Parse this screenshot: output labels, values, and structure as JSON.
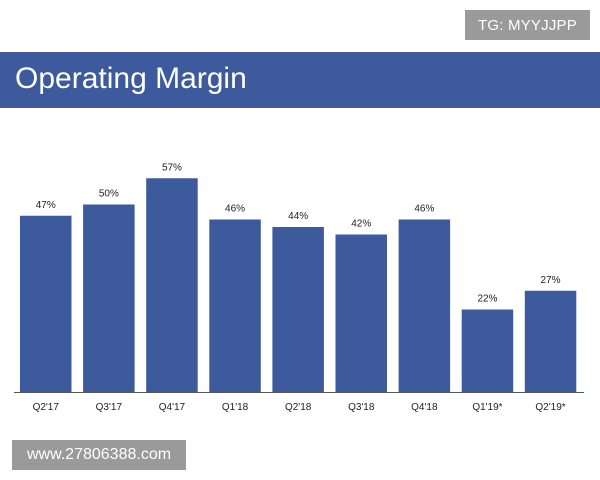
{
  "header": {
    "title": "Operating Margin",
    "title_bar_color": "#3d5a9c"
  },
  "watermarks": {
    "top": "TG: MYYJJPP",
    "bottom": "www.27806388.com"
  },
  "chart_data": {
    "type": "bar",
    "title": "Operating Margin",
    "categories": [
      "Q2'17",
      "Q3'17",
      "Q4'17",
      "Q1'18",
      "Q2'18",
      "Q3'18",
      "Q4'18",
      "Q1'19*",
      "Q2'19*"
    ],
    "values": [
      47,
      50,
      57,
      46,
      44,
      42,
      46,
      22,
      27
    ],
    "value_labels": [
      "47%",
      "50%",
      "57%",
      "46%",
      "44%",
      "42%",
      "46%",
      "22%",
      "27%"
    ],
    "unit": "%",
    "ylim": [
      0,
      100
    ],
    "bar_color": "#3d5a9c",
    "grid": false,
    "y_axis_visible": false,
    "xlabel": "",
    "ylabel": ""
  }
}
